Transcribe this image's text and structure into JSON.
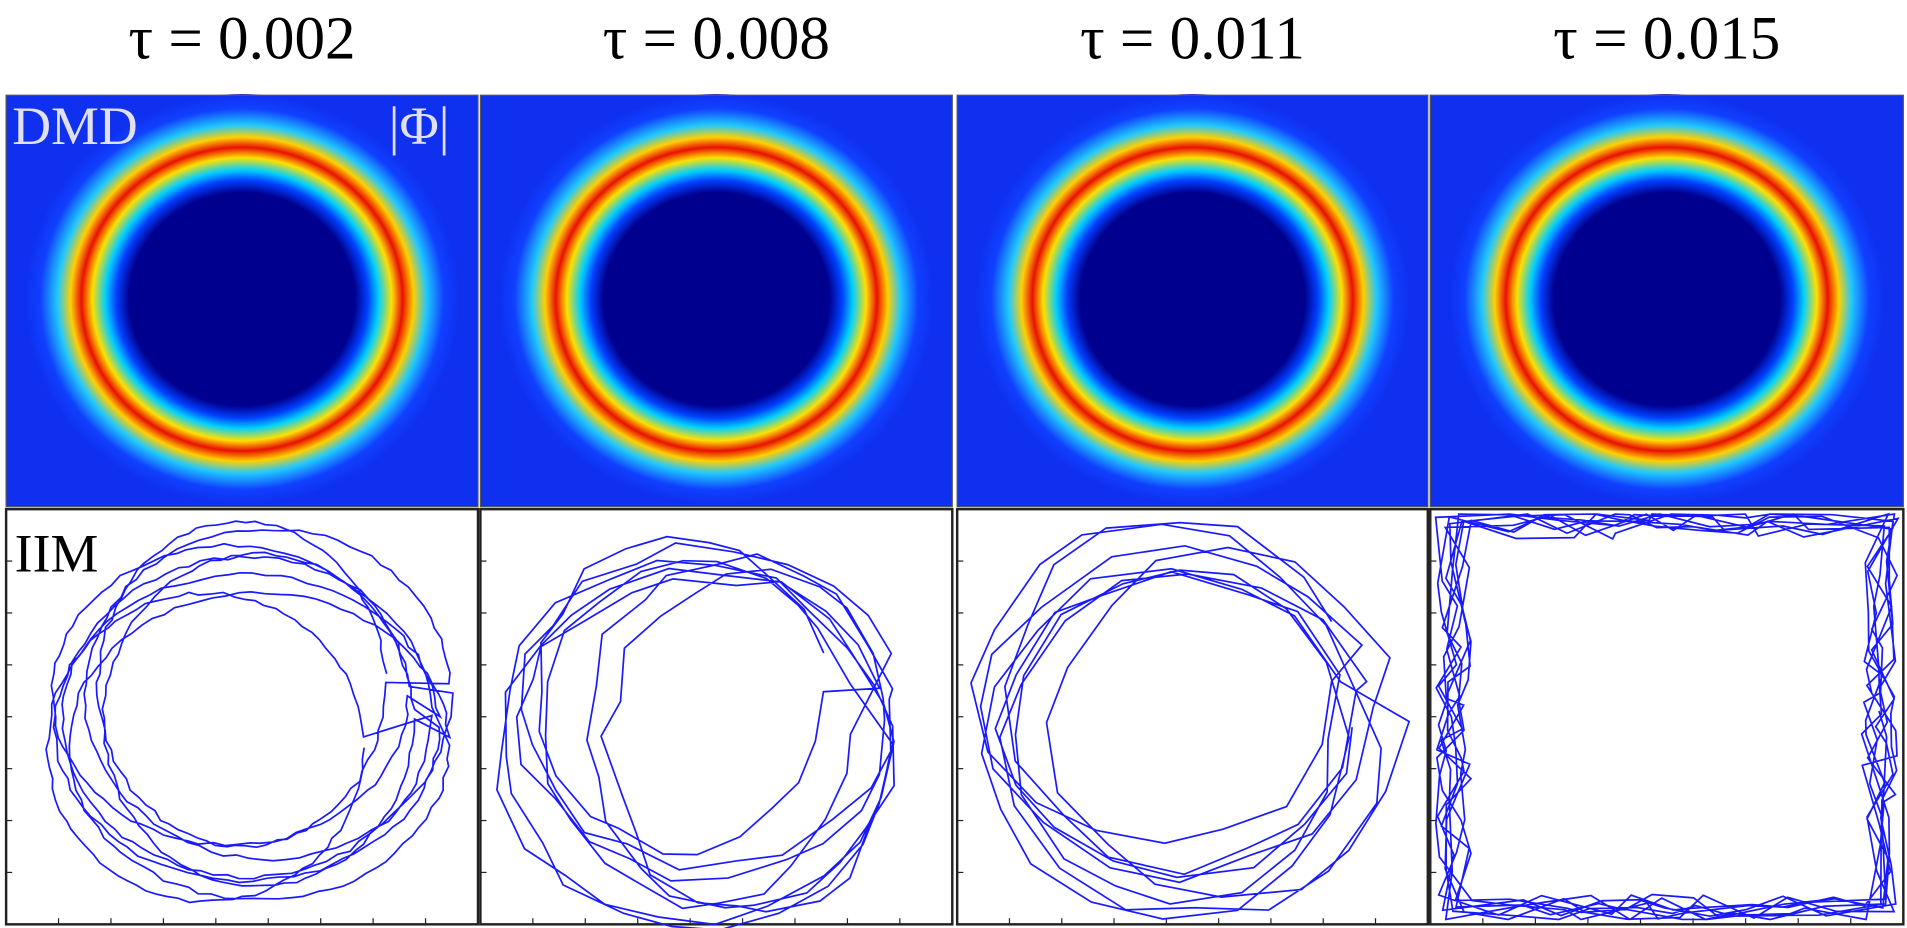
{
  "columns": [
    {
      "title": "τ = 0.002"
    },
    {
      "title": "τ = 0.008"
    },
    {
      "title": "τ = 0.011"
    },
    {
      "title": "τ = 0.015"
    }
  ],
  "labels": {
    "top": "DMD",
    "top_right": "|Φ|",
    "bottom": "IIM"
  }
}
